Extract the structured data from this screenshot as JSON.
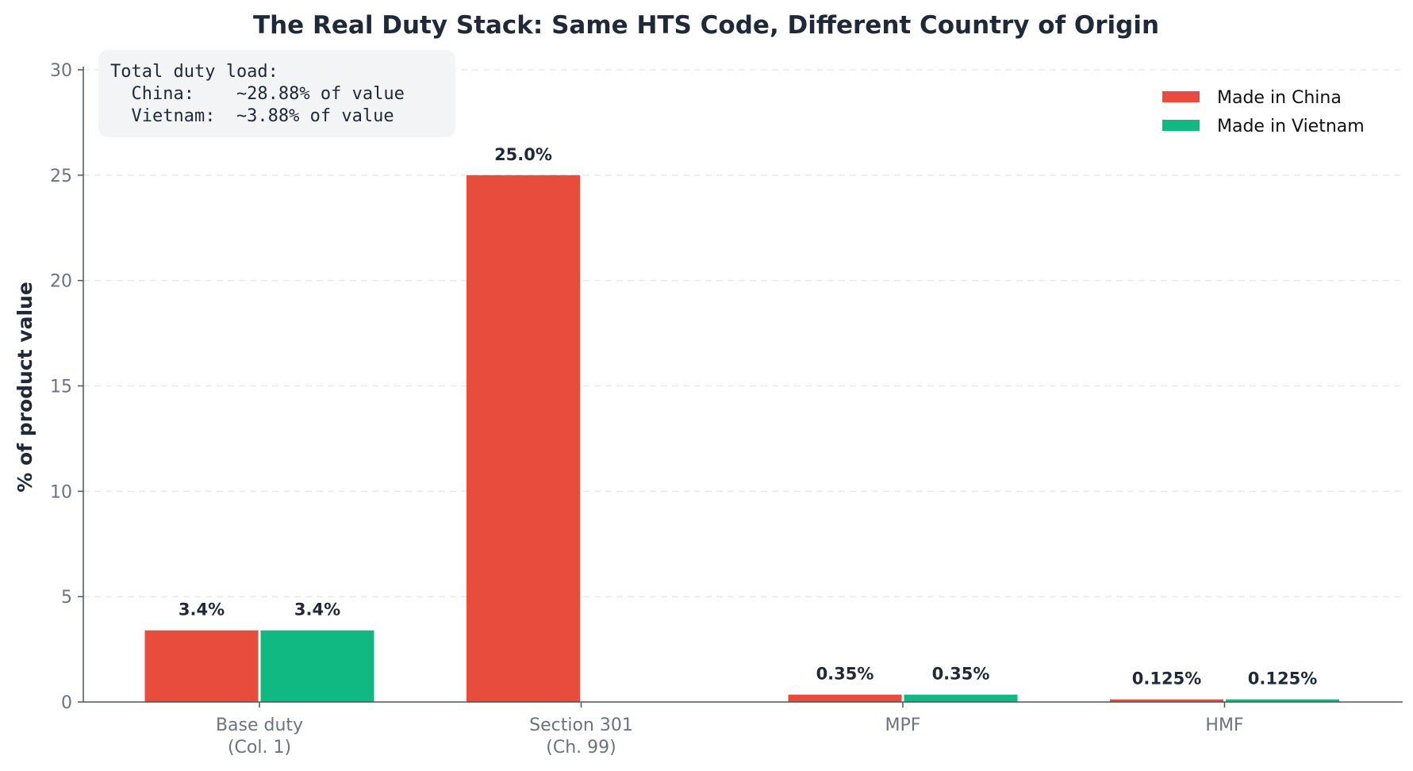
{
  "chart_data": {
    "type": "bar",
    "title": "The Real Duty Stack: Same HTS Code, Different Country of Origin",
    "xlabel": "",
    "ylabel": "% of product value",
    "ylim": [
      0,
      30
    ],
    "yticks": [
      0,
      5,
      10,
      15,
      20,
      25,
      30
    ],
    "grid": true,
    "legend_position": "top-right",
    "categories": [
      [
        "Base duty",
        "(Col. 1)"
      ],
      [
        "Section 301",
        "(Ch. 99)"
      ],
      [
        "MPF"
      ],
      [
        "HMF"
      ]
    ],
    "series": [
      {
        "name": "Made in China",
        "color": "#e74c3c",
        "values": [
          3.4,
          25.0,
          0.35,
          0.125
        ],
        "labels": [
          "3.4%",
          "25.0%",
          "0.35%",
          "0.125%"
        ]
      },
      {
        "name": "Made in Vietnam",
        "color": "#10b981",
        "values": [
          3.4,
          0,
          0.35,
          0.125
        ],
        "labels": [
          "3.4%",
          "",
          "0.35%",
          "0.125%"
        ]
      }
    ],
    "annotation": {
      "lines": [
        "Total duty load:",
        "  China:    ~28.88% of value",
        "  Vietnam:  ~3.88% of value"
      ]
    }
  }
}
